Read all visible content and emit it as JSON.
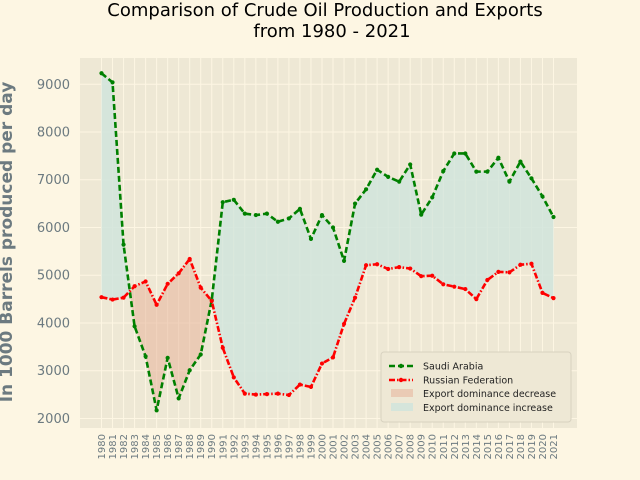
{
  "chart_data": {
    "type": "line",
    "title_line1": "Comparison of Crude Oil Production and Exports",
    "title_line2": "from 1980 - 2021",
    "xlabel": "",
    "ylabel": "In 1000 Barrels produced per day",
    "ylim": [
      1800,
      9550
    ],
    "yticks": [
      2000,
      3000,
      4000,
      5000,
      6000,
      7000,
      8000,
      9000
    ],
    "x": [
      1980,
      1981,
      1982,
      1983,
      1984,
      1985,
      1986,
      1987,
      1988,
      1989,
      1990,
      1991,
      1992,
      1993,
      1994,
      1995,
      1996,
      1997,
      1998,
      1999,
      2000,
      2001,
      2002,
      2003,
      2004,
      2005,
      2006,
      2007,
      2008,
      2009,
      2010,
      2011,
      2012,
      2013,
      2014,
      2015,
      2016,
      2017,
      2018,
      2019,
      2020,
      2021
    ],
    "series": [
      {
        "name": "Saudi Arabia",
        "color": "#008000",
        "values": [
          9230,
          9040,
          5640,
          3930,
          3300,
          2170,
          3270,
          2420,
          3010,
          3340,
          4480,
          6530,
          6580,
          6290,
          6260,
          6290,
          6120,
          6190,
          6390,
          5760,
          6260,
          6000,
          5300,
          6500,
          6800,
          7210,
          7060,
          6960,
          7320,
          6270,
          6630,
          7180,
          7550,
          7550,
          7170,
          7170,
          7460,
          6960,
          7380,
          7030,
          6650,
          6220
        ]
      },
      {
        "name": "Russian Federation",
        "color": "#ff0000",
        "values": [
          4540,
          4490,
          4530,
          4770,
          4870,
          4380,
          4820,
          5040,
          5340,
          4740,
          4460,
          3480,
          2860,
          2520,
          2500,
          2510,
          2520,
          2490,
          2710,
          2660,
          3150,
          3280,
          3980,
          4530,
          5210,
          5230,
          5130,
          5170,
          5140,
          4980,
          4990,
          4810,
          4760,
          4710,
          4500,
          4900,
          5070,
          5060,
          5220,
          5240,
          4630,
          4520
        ]
      }
    ],
    "fills": [
      {
        "name": "Export dominance decrease",
        "color": "#e8b8a0"
      },
      {
        "name": "Export dominance increase",
        "color": "#d0e4dc"
      }
    ],
    "grid": true,
    "legend_position": "bottom-right"
  }
}
